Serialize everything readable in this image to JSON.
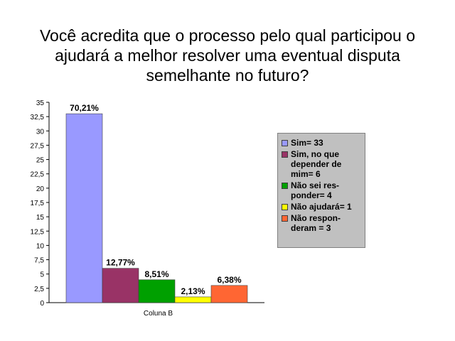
{
  "chart_data": {
    "type": "bar",
    "title_lines": [
      "Você acredita que o processo pelo qual participou o",
      "ajudará a melhor resolver uma eventual disputa",
      "semelhante no futuro?"
    ],
    "xlabel": "Coluna B",
    "ylim": [
      0,
      35
    ],
    "yticks": [
      "0",
      "2,5",
      "5",
      "7,5",
      "10",
      "12,5",
      "15",
      "17,5",
      "20",
      "22,5",
      "25",
      "27,5",
      "30",
      "32,5",
      "35"
    ],
    "grid": false,
    "legend_position": "right",
    "series": [
      {
        "name": "Sim= 33",
        "value": 33,
        "label": "70,21%",
        "color": "#9999ff"
      },
      {
        "name": "Sim, no que\ndepender de\nmim= 6",
        "value": 6,
        "label": "12,77%",
        "color": "#993366"
      },
      {
        "name": "Não sei res-\nponder= 4",
        "value": 4,
        "label": "8,51%",
        "color": "#00a000"
      },
      {
        "name": "Não ajudará= 1",
        "value": 1,
        "label": "2,13%",
        "color": "#ffff00"
      },
      {
        "name": "Não respon-\nderam = 3",
        "value": 3,
        "label": "6,38%",
        "color": "#ff6633"
      }
    ]
  }
}
